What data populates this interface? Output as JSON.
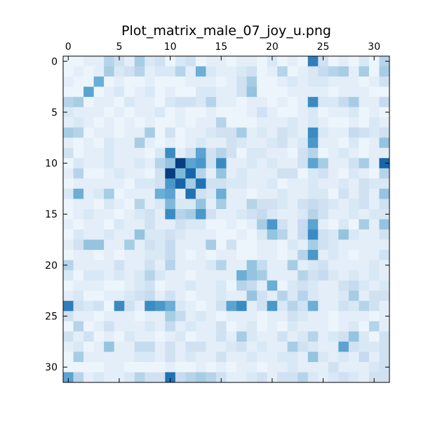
{
  "chart_data": {
    "type": "heatmap",
    "title": "Plot_matrix_male_07_joy_u.png",
    "colormap": "Blues",
    "vmin": 0,
    "vmax": 1,
    "x_ticks": [
      0,
      5,
      10,
      15,
      20,
      25,
      30
    ],
    "y_ticks": [
      0,
      5,
      10,
      15,
      20,
      25,
      30
    ],
    "x_ticks_position": "top",
    "n_rows": 32,
    "n_cols": 32,
    "grid": false,
    "values": [
      [
        0.05,
        0.05,
        0.1,
        0.1,
        0.3,
        0.2,
        0.1,
        0.35,
        0.15,
        0.2,
        0.05,
        0.15,
        0.2,
        0.05,
        0.1,
        0.1,
        0.05,
        0.1,
        0.1,
        0.05,
        0.15,
        0.05,
        0.1,
        0.05,
        0.7,
        0.2,
        0.05,
        0.1,
        0.05,
        0.15,
        0.05,
        0.3
      ],
      [
        0.05,
        0.1,
        0.05,
        0.1,
        0.35,
        0.15,
        0.2,
        0.3,
        0.1,
        0.15,
        0.15,
        0.3,
        0.1,
        0.5,
        0.15,
        0.1,
        0.1,
        0.15,
        0.2,
        0.05,
        0.1,
        0.3,
        0.05,
        0.1,
        0.15,
        0.25,
        0.3,
        0.35,
        0.1,
        0.35,
        0.05,
        0.35
      ],
      [
        0.1,
        0.05,
        0.05,
        0.5,
        0.05,
        0.1,
        0.05,
        0.05,
        0.1,
        0.05,
        0.05,
        0.05,
        0.1,
        0.1,
        0.1,
        0.05,
        0.1,
        0.2,
        0.35,
        0.05,
        0.05,
        0.1,
        0.15,
        0.1,
        0.15,
        0.15,
        0.1,
        0.1,
        0.1,
        0.05,
        0.1,
        0.2
      ],
      [
        0.05,
        0.05,
        0.55,
        0.05,
        0.1,
        0.15,
        0.05,
        0.1,
        0.15,
        0.05,
        0.1,
        0.05,
        0.05,
        0.15,
        0.15,
        0.1,
        0.1,
        0.2,
        0.4,
        0.05,
        0.05,
        0.05,
        0.1,
        0.1,
        0.1,
        0.1,
        0.05,
        0.1,
        0.1,
        0.1,
        0.05,
        0.05
      ],
      [
        0.3,
        0.35,
        0.05,
        0.1,
        0.1,
        0.05,
        0.15,
        0.1,
        0.1,
        0.05,
        0.15,
        0.2,
        0.2,
        0.15,
        0.3,
        0.1,
        0.1,
        0.05,
        0.1,
        0.1,
        0.05,
        0.1,
        0.05,
        0.1,
        0.65,
        0.15,
        0.15,
        0.25,
        0.35,
        0.1,
        0.1,
        0.25
      ],
      [
        0.15,
        0.1,
        0.1,
        0.1,
        0.05,
        0.1,
        0.05,
        0.1,
        0.1,
        0.15,
        0.05,
        0.1,
        0.05,
        0.05,
        0.1,
        0.05,
        0.05,
        0.05,
        0.1,
        0.2,
        0.1,
        0.05,
        0.05,
        0.1,
        0.15,
        0.05,
        0.1,
        0.1,
        0.15,
        0.05,
        0.1,
        0.05
      ],
      [
        0.1,
        0.15,
        0.1,
        0.05,
        0.1,
        0.05,
        0.1,
        0.05,
        0.1,
        0.05,
        0.05,
        0.1,
        0.05,
        0.1,
        0.1,
        0.3,
        0.05,
        0.05,
        0.05,
        0.1,
        0.1,
        0.1,
        0.15,
        0.1,
        0.15,
        0.1,
        0.05,
        0.05,
        0.1,
        0.05,
        0.15,
        0.1
      ],
      [
        0.35,
        0.3,
        0.05,
        0.1,
        0.1,
        0.05,
        0.1,
        0.1,
        0.35,
        0.05,
        0.2,
        0.05,
        0.1,
        0.1,
        0.15,
        0.2,
        0.2,
        0.35,
        0.1,
        0.15,
        0.1,
        0.2,
        0.15,
        0.1,
        0.65,
        0.15,
        0.1,
        0.1,
        0.25,
        0.2,
        0.15,
        0.2
      ],
      [
        0.1,
        0.05,
        0.1,
        0.05,
        0.15,
        0.1,
        0.1,
        0.35,
        0.1,
        0.05,
        0.1,
        0.05,
        0.1,
        0.15,
        0.1,
        0.1,
        0.2,
        0.15,
        0.1,
        0.1,
        0.15,
        0.2,
        0.1,
        0.15,
        0.6,
        0.1,
        0.1,
        0.05,
        0.15,
        0.05,
        0.1,
        0.4
      ],
      [
        0.2,
        0.05,
        0.1,
        0.1,
        0.15,
        0.1,
        0.1,
        0.1,
        0.05,
        0.15,
        0.65,
        0.1,
        0.2,
        0.55,
        0.2,
        0.3,
        0.2,
        0.05,
        0.15,
        0.15,
        0.1,
        0.1,
        0.05,
        0.2,
        0.3,
        0.05,
        0.1,
        0.15,
        0.1,
        0.05,
        0.1,
        0.1
      ],
      [
        0.05,
        0.15,
        0.1,
        0.1,
        0.15,
        0.1,
        0.1,
        0.15,
        0.1,
        0.3,
        0.4,
        0.95,
        0.55,
        0.6,
        0.2,
        0.65,
        0.1,
        0.1,
        0.15,
        0.1,
        0.15,
        0.1,
        0.1,
        0.2,
        0.55,
        0.35,
        0.1,
        0.1,
        0.2,
        0.35,
        0.1,
        0.8
      ],
      [
        0.1,
        0.3,
        0.05,
        0.05,
        0.1,
        0.15,
        0.1,
        0.1,
        0.05,
        0.2,
        0.95,
        0.45,
        0.8,
        0.3,
        0.1,
        0.4,
        0.1,
        0.15,
        0.1,
        0.1,
        0.1,
        0.2,
        0.2,
        0.05,
        0.15,
        0.2,
        0.1,
        0.05,
        0.15,
        0.1,
        0.05,
        0.3
      ],
      [
        0.05,
        0.1,
        0.1,
        0.1,
        0.1,
        0.1,
        0.05,
        0.15,
        0.15,
        0.2,
        0.6,
        0.8,
        0.35,
        0.75,
        0.2,
        0.2,
        0.15,
        0.15,
        0.1,
        0.1,
        0.15,
        0.05,
        0.1,
        0.1,
        0.15,
        0.1,
        0.1,
        0.15,
        0.1,
        0.2,
        0.15,
        0.15
      ],
      [
        0.15,
        0.5,
        0.1,
        0.15,
        0.35,
        0.05,
        0.1,
        0.1,
        0.1,
        0.5,
        0.55,
        0.1,
        0.75,
        0.2,
        0.15,
        0.5,
        0.1,
        0.1,
        0.05,
        0.1,
        0.1,
        0.15,
        0.1,
        0.1,
        0.15,
        0.15,
        0.05,
        0.2,
        0.1,
        0.2,
        0.1,
        0.4
      ],
      [
        0.05,
        0.1,
        0.1,
        0.05,
        0.15,
        0.1,
        0.05,
        0.3,
        0.1,
        0.15,
        0.45,
        0.15,
        0.15,
        0.4,
        0.1,
        0.35,
        0.1,
        0.1,
        0.3,
        0.2,
        0.2,
        0.15,
        0.1,
        0.2,
        0.25,
        0.2,
        0.15,
        0.1,
        0.15,
        0.2,
        0.1,
        0.2
      ],
      [
        0.05,
        0.1,
        0.15,
        0.1,
        0.1,
        0.05,
        0.1,
        0.15,
        0.2,
        0.1,
        0.65,
        0.3,
        0.35,
        0.6,
        0.2,
        0.1,
        0.1,
        0.15,
        0.2,
        0.25,
        0.15,
        0.1,
        0.1,
        0.15,
        0.3,
        0.2,
        0.1,
        0.1,
        0.15,
        0.1,
        0.15,
        0.15
      ],
      [
        0.1,
        0.05,
        0.1,
        0.1,
        0.05,
        0.15,
        0.1,
        0.1,
        0.2,
        0.1,
        0.1,
        0.2,
        0.15,
        0.15,
        0.05,
        0.05,
        0.1,
        0.05,
        0.1,
        0.35,
        0.6,
        0.2,
        0.1,
        0.25,
        0.55,
        0.1,
        0.05,
        0.15,
        0.05,
        0.35,
        0.1,
        0.4
      ],
      [
        0.05,
        0.15,
        0.1,
        0.1,
        0.15,
        0.1,
        0.1,
        0.4,
        0.15,
        0.15,
        0.2,
        0.15,
        0.1,
        0.1,
        0.1,
        0.05,
        0.05,
        0.1,
        0.05,
        0.15,
        0.4,
        0.3,
        0.1,
        0.25,
        0.65,
        0.2,
        0.15,
        0.4,
        0.15,
        0.1,
        0.1,
        0.2
      ],
      [
        0.1,
        0.2,
        0.4,
        0.4,
        0.1,
        0.1,
        0.35,
        0.1,
        0.2,
        0.15,
        0.25,
        0.1,
        0.1,
        0.1,
        0.35,
        0.05,
        0.2,
        0.05,
        0.05,
        0.1,
        0.1,
        0.05,
        0.15,
        0.1,
        0.35,
        0.2,
        0.15,
        0.1,
        0.1,
        0.1,
        0.1,
        0.1
      ],
      [
        0.05,
        0.1,
        0.1,
        0.05,
        0.1,
        0.05,
        0.1,
        0.1,
        0.15,
        0.15,
        0.25,
        0.1,
        0.05,
        0.1,
        0.05,
        0.1,
        0.1,
        0.05,
        0.05,
        0.1,
        0.1,
        0.05,
        0.1,
        0.3,
        0.6,
        0.1,
        0.15,
        0.1,
        0.05,
        0.1,
        0.1,
        0.2
      ],
      [
        0.3,
        0.1,
        0.1,
        0.1,
        0.1,
        0.2,
        0.1,
        0.1,
        0.2,
        0.1,
        0.3,
        0.1,
        0.1,
        0.1,
        0.15,
        0.3,
        0.1,
        0.1,
        0.4,
        0.25,
        0.1,
        0.1,
        0.35,
        0.1,
        0.15,
        0.2,
        0.1,
        0.1,
        0.1,
        0.1,
        0.15,
        0.1
      ],
      [
        0.15,
        0.05,
        0.15,
        0.15,
        0.1,
        0.15,
        0.1,
        0.15,
        0.3,
        0.15,
        0.1,
        0.1,
        0.05,
        0.1,
        0.1,
        0.1,
        0.1,
        0.5,
        0.4,
        0.35,
        0.1,
        0.1,
        0.1,
        0.3,
        0.2,
        0.25,
        0.15,
        0.1,
        0.15,
        0.1,
        0.15,
        0.1
      ],
      [
        0.05,
        0.1,
        0.1,
        0.1,
        0.05,
        0.05,
        0.1,
        0.15,
        0.2,
        0.05,
        0.1,
        0.1,
        0.15,
        0.1,
        0.1,
        0.15,
        0.05,
        0.3,
        0.25,
        0.1,
        0.5,
        0.05,
        0.15,
        0.2,
        0.15,
        0.1,
        0.1,
        0.2,
        0.25,
        0.15,
        0.1,
        0.15
      ],
      [
        0.1,
        0.15,
        0.05,
        0.05,
        0.1,
        0.1,
        0.15,
        0.2,
        0.25,
        0.1,
        0.2,
        0.1,
        0.05,
        0.1,
        0.1,
        0.15,
        0.1,
        0.1,
        0.4,
        0.2,
        0.1,
        0.3,
        0.15,
        0.3,
        0.15,
        0.1,
        0.1,
        0.15,
        0.35,
        0.1,
        0.2,
        0.2
      ],
      [
        0.7,
        0.2,
        0.15,
        0.2,
        0.05,
        0.65,
        0.2,
        0.1,
        0.65,
        0.6,
        0.5,
        0.15,
        0.1,
        0.05,
        0.1,
        0.2,
        0.55,
        0.65,
        0.1,
        0.2,
        0.6,
        0.15,
        0.3,
        0.2,
        0.5,
        0.1,
        0.1,
        0.2,
        0.15,
        0.3,
        0.2,
        0.1
      ],
      [
        0.2,
        0.1,
        0.1,
        0.05,
        0.1,
        0.1,
        0.1,
        0.05,
        0.1,
        0.1,
        0.35,
        0.25,
        0.1,
        0.15,
        0.1,
        0.05,
        0.1,
        0.1,
        0.1,
        0.05,
        0.1,
        0.1,
        0.2,
        0.15,
        0.1,
        0.1,
        0.05,
        0.1,
        0.1,
        0.1,
        0.05,
        0.1
      ],
      [
        0.05,
        0.3,
        0.05,
        0.1,
        0.2,
        0.1,
        0.1,
        0.1,
        0.15,
        0.1,
        0.25,
        0.1,
        0.15,
        0.1,
        0.1,
        0.2,
        0.05,
        0.1,
        0.15,
        0.05,
        0.1,
        0.05,
        0.15,
        0.1,
        0.1,
        0.1,
        0.05,
        0.1,
        0.15,
        0.05,
        0.3,
        0.1
      ],
      [
        0.2,
        0.1,
        0.2,
        0.05,
        0.1,
        0.05,
        0.15,
        0.1,
        0.1,
        0.05,
        0.1,
        0.15,
        0.05,
        0.1,
        0.1,
        0.2,
        0.1,
        0.35,
        0.15,
        0.1,
        0.1,
        0.2,
        0.1,
        0.15,
        0.3,
        0.1,
        0.15,
        0.2,
        0.4,
        0.15,
        0.05,
        0.2
      ],
      [
        0.1,
        0.15,
        0.05,
        0.1,
        0.4,
        0.1,
        0.1,
        0.25,
        0.25,
        0.1,
        0.2,
        0.1,
        0.2,
        0.2,
        0.1,
        0.1,
        0.15,
        0.2,
        0.1,
        0.15,
        0.1,
        0.1,
        0.35,
        0.2,
        0.15,
        0.1,
        0.1,
        0.55,
        0.2,
        0.15,
        0.15,
        0.2
      ],
      [
        0.05,
        0.35,
        0.1,
        0.1,
        0.1,
        0.1,
        0.1,
        0.15,
        0.15,
        0.1,
        0.2,
        0.1,
        0.15,
        0.1,
        0.1,
        0.2,
        0.1,
        0.1,
        0.15,
        0.1,
        0.1,
        0.15,
        0.15,
        0.1,
        0.4,
        0.15,
        0.1,
        0.15,
        0.1,
        0.25,
        0.1,
        0.2
      ],
      [
        0.05,
        0.05,
        0.05,
        0.05,
        0.1,
        0.1,
        0.05,
        0.05,
        0.05,
        0.05,
        0.1,
        0.05,
        0.05,
        0.1,
        0.05,
        0.1,
        0.05,
        0.1,
        0.1,
        0.05,
        0.1,
        0.1,
        0.15,
        0.1,
        0.1,
        0.1,
        0.2,
        0.1,
        0.1,
        0.1,
        0.15,
        0.2
      ],
      [
        0.55,
        0.3,
        0.1,
        0.15,
        0.1,
        0.1,
        0.15,
        0.3,
        0.2,
        0.2,
        0.75,
        0.25,
        0.3,
        0.35,
        0.3,
        0.2,
        0.1,
        0.1,
        0.15,
        0.2,
        0.1,
        0.2,
        0.2,
        0.3,
        0.15,
        0.1,
        0.15,
        0.2,
        0.15,
        0.1,
        0.2,
        0.2
      ]
    ]
  }
}
